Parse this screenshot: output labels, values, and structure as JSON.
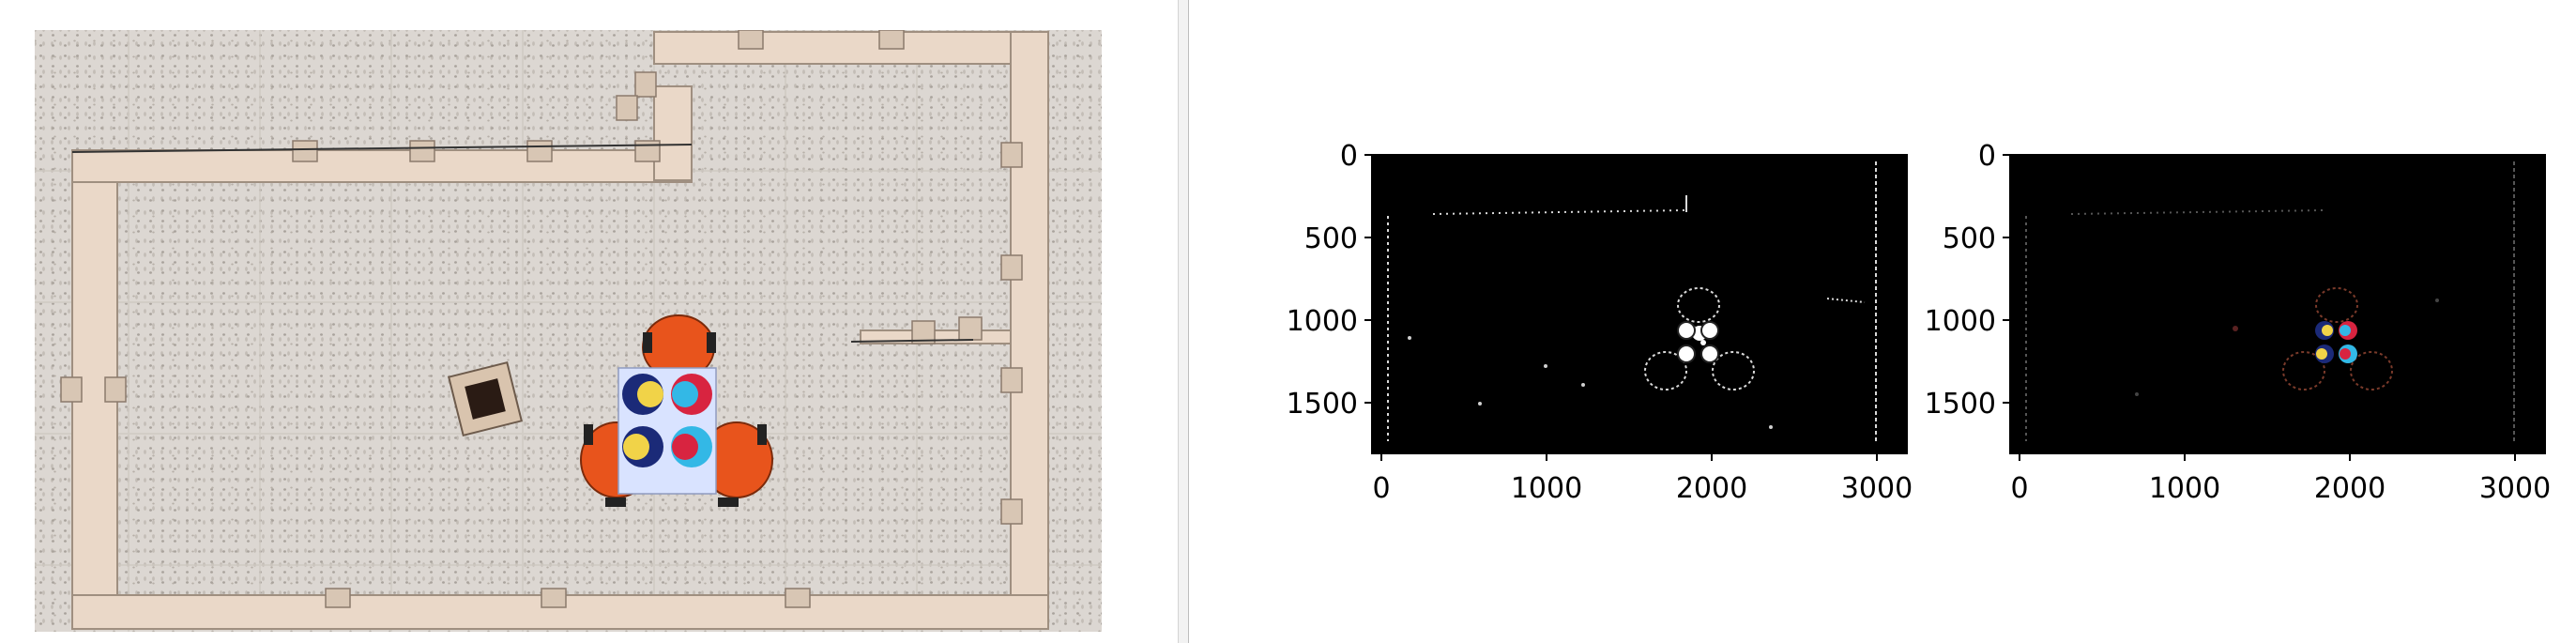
{
  "camera": {
    "description_icon": "overhead-camera-icon",
    "colors": {
      "floor": "#dcd7d2",
      "wall": "#ead8c8",
      "robot": "#e8541c",
      "card_bg": "#d9e3ff",
      "navy": "#1b2a78",
      "yellow": "#f1d348",
      "red": "#d82440",
      "cyan": "#33b8e6"
    }
  },
  "plots": [
    {
      "id": "edge-mask",
      "x_ticks": [
        "0",
        "1000",
        "2000",
        "3000"
      ],
      "y_ticks": [
        "0",
        "500",
        "1000",
        "1500"
      ]
    },
    {
      "id": "color-mask",
      "x_ticks": [
        "0",
        "1000",
        "2000",
        "3000"
      ],
      "y_ticks": [
        "0",
        "500",
        "1000",
        "1500"
      ]
    }
  ],
  "chart_data": [
    {
      "type": "image",
      "xlim": [
        0,
        3200
      ],
      "ylim": [
        1800,
        0
      ],
      "x_ticks": [
        0,
        1000,
        2000,
        3000
      ],
      "y_ticks": [
        0,
        500,
        1000,
        1500
      ],
      "content": "binary edge mask"
    },
    {
      "type": "image",
      "xlim": [
        0,
        3200
      ],
      "ylim": [
        1800,
        0
      ],
      "x_ticks": [
        0,
        1000,
        2000,
        3000
      ],
      "y_ticks": [
        0,
        500,
        1000,
        1500
      ],
      "content": "color-filtered mask"
    }
  ]
}
